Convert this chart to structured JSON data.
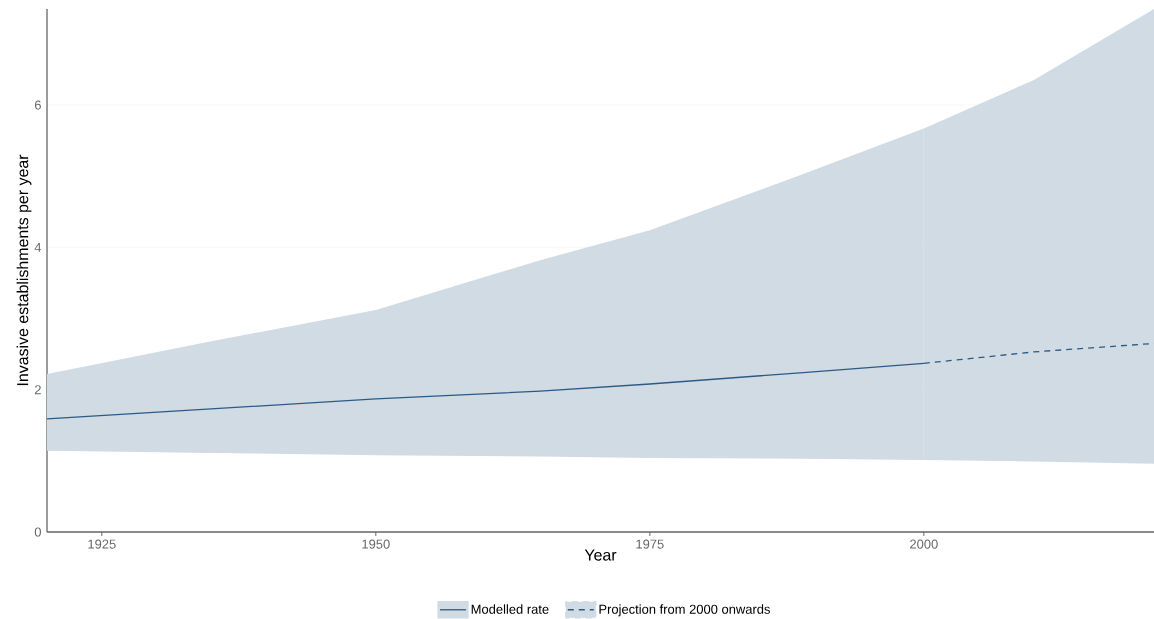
{
  "chart_data": {
    "type": "line",
    "xlabel": "Year",
    "ylabel": "Invasive establishments per year",
    "xlim": [
      1920,
      2021
    ],
    "ylim": [
      0,
      7.35
    ],
    "xticks": [
      1925,
      1950,
      1975,
      2000
    ],
    "yticks": [
      0,
      2,
      4,
      6
    ],
    "grid": "y",
    "legend": "bottom",
    "marker": "none",
    "series": [
      {
        "name": "Modelled rate",
        "color": "#2c5a85",
        "line_style": "solid",
        "x": [
          1920,
          1935,
          1950,
          1965,
          1975,
          1989,
          2000
        ],
        "values": [
          1.59,
          1.73,
          1.87,
          1.98,
          2.08,
          2.24,
          2.37
        ],
        "lower": [
          1.14,
          1.11,
          1.08,
          1.06,
          1.04,
          1.03,
          1.01
        ],
        "upper": [
          2.22,
          2.68,
          3.12,
          3.82,
          4.24,
          5.03,
          5.67
        ]
      },
      {
        "name": "Projection from 2000 onwards",
        "color": "#2c5a85",
        "line_style": "dashed",
        "x": [
          2000,
          2010,
          2021
        ],
        "values": [
          2.37,
          2.53,
          2.65
        ],
        "lower": [
          1.01,
          0.99,
          0.96
        ],
        "upper": [
          5.67,
          6.35,
          7.35
        ]
      }
    ]
  }
}
